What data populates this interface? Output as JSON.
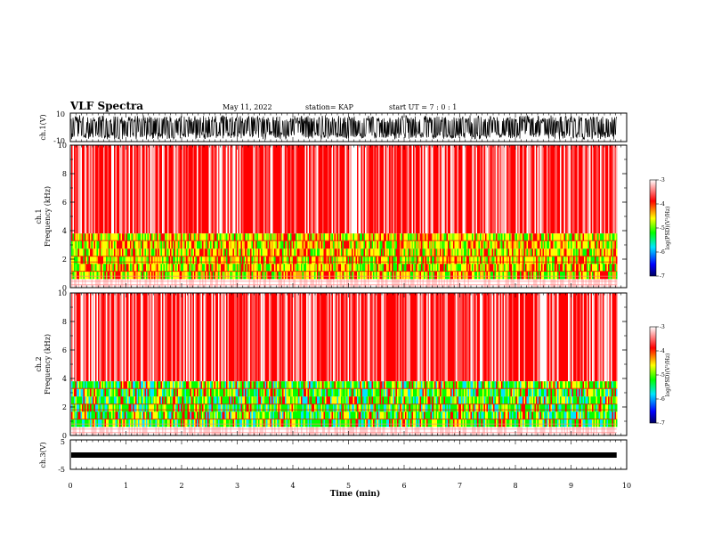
{
  "header": {
    "title": "VLF Spectra",
    "date": "May 11, 2022",
    "station": "station= KAP",
    "start": "start UT =  7 : 0 : 1"
  },
  "chart_data": {
    "type": "heatmap",
    "x_axis": {
      "label": "Time (min)",
      "range": [
        0,
        10
      ],
      "ticks": [
        "0",
        "1",
        "2",
        "3",
        "4",
        "5",
        "6",
        "7",
        "8",
        "9",
        "10"
      ]
    },
    "data_end_min": 9.82,
    "panels": [
      {
        "id": "ch1-waveform",
        "type": "line",
        "ylabel": "ch.1(V)",
        "ylim": [
          -10,
          10
        ],
        "ticks": [
          "10",
          "-10"
        ]
      },
      {
        "id": "ch1-spectrogram",
        "type": "heatmap",
        "ylabel_top": "ch.1",
        "ylabel": "Frequency (kHz)",
        "ylim": [
          0,
          10
        ],
        "ticks": [
          "0",
          "2",
          "4",
          "6",
          "8",
          "10"
        ]
      },
      {
        "id": "ch2-spectrogram",
        "type": "heatmap",
        "ylabel_top": "ch.2",
        "ylabel": "Frequency (kHz)",
        "ylim": [
          0,
          10
        ],
        "ticks": [
          "0",
          "2",
          "4",
          "6",
          "8",
          "10"
        ]
      },
      {
        "id": "ch3-waveform",
        "type": "line",
        "ylabel": "ch.3(V)",
        "ylim": [
          -5,
          5
        ],
        "ticks": [
          "5",
          "-5"
        ]
      }
    ],
    "colorbar": {
      "label": "log(PSD)(V²/Hz)",
      "range": [
        -7,
        -3
      ],
      "ticks": [
        "-3",
        "-4",
        "-5",
        "-6",
        "-7"
      ],
      "colors": [
        "#000060",
        "#0000ff",
        "#00e5ff",
        "#00ff00",
        "#ffff00",
        "#ff0000",
        "#ffffff"
      ]
    }
  }
}
